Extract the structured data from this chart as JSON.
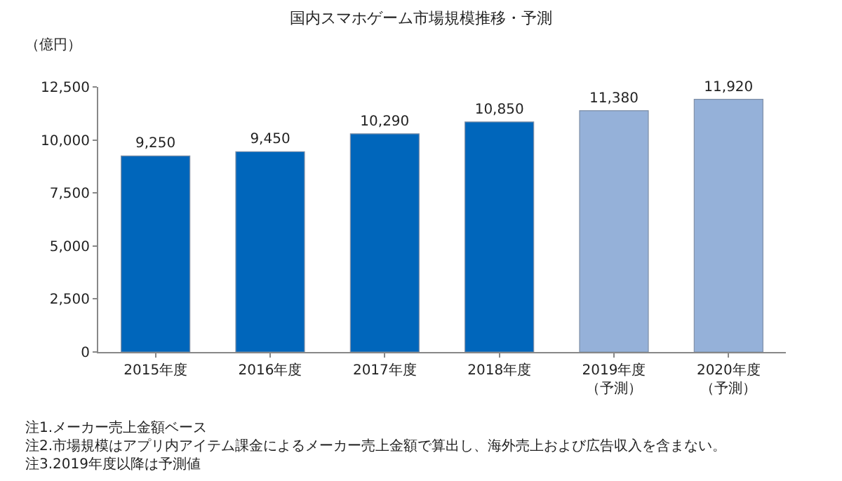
{
  "chart_data": {
    "type": "bar",
    "title": "国内スマホゲーム市場規模推移・予測",
    "ylabel": "（億円）",
    "categories": [
      "2015年度",
      "2016年度",
      "2017年度",
      "2018年度",
      "2019年度（予測）",
      "2020年度（予測）"
    ],
    "values": [
      9250,
      9450,
      10290,
      10850,
      11380,
      11920
    ],
    "colors": [
      "#0066bb",
      "#0066bb",
      "#0066bb",
      "#0066bb",
      "#95b1d9",
      "#95b1d9"
    ],
    "ylim": [
      0,
      12500
    ],
    "yticks": [
      0,
      {
        "value": 2500,
        "label": "2,500"
      },
      {
        "value": 5000,
        "label": "5,000"
      },
      {
        "value": 7500,
        "label": "7,500"
      },
      {
        "value": 10000,
        "label": "10,000"
      },
      {
        "value": 12500,
        "label": "12,500"
      }
    ],
    "value_labels": [
      "9,250",
      "9,450",
      "10,290",
      "10,850",
      "11,380",
      "11,920"
    ],
    "legend": false,
    "annotations": [
      "注1.メーカー売上金額ベース",
      "注2.市場規模はアプリ内アイテム課金によるメーカー売上金額で算出し、海外売上および広告収入を含まない。",
      "注3.2019年度以降は予測値"
    ]
  }
}
